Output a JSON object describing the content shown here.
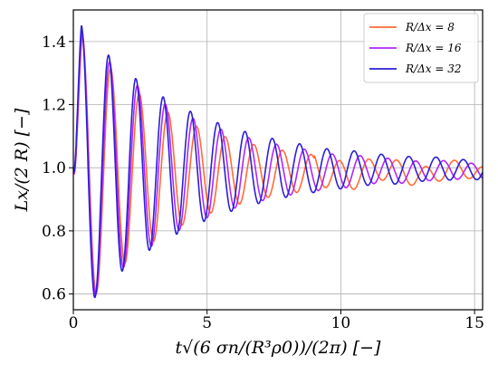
{
  "chart_data": {
    "type": "line",
    "xlabel": "t√(6 σn/(R³ρ0))/(2π) [−]",
    "ylabel": "Lx/(2 R) [−]",
    "xlim": [
      0,
      15.3
    ],
    "ylim": [
      0.55,
      1.5
    ],
    "x_ticks": [
      0,
      5,
      10,
      15
    ],
    "y_ticks": [
      0.6,
      0.8,
      1.0,
      1.2,
      1.4
    ],
    "x_tick_labels": [
      "0",
      "5",
      "10",
      "15"
    ],
    "y_tick_labels": [
      "0.6",
      "0.8",
      "1.0",
      "1.2",
      "1.4"
    ],
    "grid": true,
    "legend_position": "top-right",
    "series": [
      {
        "name": "R/Δx = 8",
        "color": "#ff6b35",
        "period": 1.07,
        "peak_time": 0.33,
        "initial_amplitude": 0.46,
        "decay_time": 3.6,
        "residual_amplitude": 0.018,
        "mean": 0.985,
        "noise_amplitude": 0.012
      },
      {
        "name": "R/Δx = 16",
        "color": "#b026ff",
        "period": 1.04,
        "peak_time": 0.32,
        "initial_amplitude": 0.465,
        "decay_time": 4.0,
        "residual_amplitude": 0.015,
        "mean": 0.99,
        "noise_amplitude": 0.003
      },
      {
        "name": "R/Δx = 32",
        "color": "#2b1fd6",
        "period": 1.02,
        "peak_time": 0.3,
        "initial_amplitude": 0.47,
        "decay_time": 4.2,
        "residual_amplitude": 0.018,
        "mean": 0.995,
        "noise_amplitude": 0.002
      }
    ]
  }
}
